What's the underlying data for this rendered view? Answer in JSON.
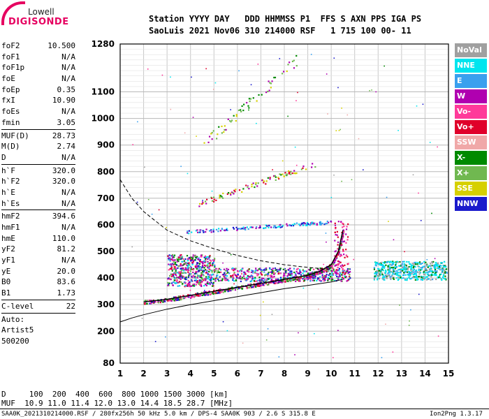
{
  "logo": {
    "line1": "Lowell",
    "line2": "DIGISONDE"
  },
  "header": {
    "row1": "Station YYYY DAY   DDD HHMMSS P1  FFS S AXN PPS IGA PS",
    "row2": "SaoLuis 2021 Nov06 310 214000 RSF   1 715 100 00- 11"
  },
  "params": {
    "group1": [
      {
        "k": "foF2",
        "v": "10.500"
      },
      {
        "k": "foF1",
        "v": "N/A"
      },
      {
        "k": "foF1p",
        "v": "N/A"
      },
      {
        "k": "foE",
        "v": "N/A"
      },
      {
        "k": "foEp",
        "v": "0.35"
      },
      {
        "k": "fxI",
        "v": "10.90"
      },
      {
        "k": "foEs",
        "v": "N/A"
      },
      {
        "k": "fmin",
        "v": "3.05"
      }
    ],
    "group2": [
      {
        "k": "MUF(D)",
        "v": "28.73"
      },
      {
        "k": "M(D)",
        "v": "2.74"
      },
      {
        "k": "D",
        "v": "N/A"
      }
    ],
    "group3": [
      {
        "k": "h`F",
        "v": "320.0"
      },
      {
        "k": "h`F2",
        "v": "320.0"
      },
      {
        "k": "h`E",
        "v": "N/A"
      },
      {
        "k": "h`Es",
        "v": "N/A"
      }
    ],
    "group4": [
      {
        "k": "hmF2",
        "v": "394.6"
      },
      {
        "k": "hmF1",
        "v": "N/A"
      },
      {
        "k": "hmE",
        "v": "110.0"
      },
      {
        "k": "yF2",
        "v": "81.2"
      },
      {
        "k": "yF1",
        "v": "N/A"
      },
      {
        "k": "yE",
        "v": "20.0"
      },
      {
        "k": "B0",
        "v": "83.6"
      },
      {
        "k": "B1",
        "v": "1.73"
      }
    ],
    "group5": [
      {
        "k": "C-level",
        "v": "22"
      }
    ],
    "auto": [
      "Auto:",
      "Artist5",
      "500200"
    ]
  },
  "legend": [
    {
      "label": "NoVal",
      "color": "#a0a0a0"
    },
    {
      "label": "NNE",
      "color": "#00e5ee"
    },
    {
      "label": "E",
      "color": "#3aa0ee"
    },
    {
      "label": "W",
      "color": "#b000b0"
    },
    {
      "label": "Vo-",
      "color": "#ff3a9a"
    },
    {
      "label": "Vo+",
      "color": "#e0002a"
    },
    {
      "label": "SSW",
      "color": "#f0a8a8"
    },
    {
      "label": "X-",
      "color": "#008a00"
    },
    {
      "label": "X+",
      "color": "#70b850"
    },
    {
      "label": "SSE",
      "color": "#d6d000"
    },
    {
      "label": "NNW",
      "color": "#1a1acc"
    }
  ],
  "chart_data": {
    "type": "scatter",
    "xlim": [
      1,
      15
    ],
    "ylim": [
      80,
      1280
    ],
    "x_ticks": [
      "1",
      "2",
      "3",
      "4",
      "5",
      "6",
      "7",
      "8",
      "9",
      "10",
      "11",
      "12",
      "13",
      "14",
      "15"
    ],
    "y_ticks": [
      "80",
      "200",
      "300",
      "400",
      "500",
      "600",
      "700",
      "800",
      "900",
      "1000",
      "1100",
      "1280"
    ],
    "grid": true,
    "profile_curve": [
      [
        1.0,
        235
      ],
      [
        1.5,
        250
      ],
      [
        2,
        262
      ],
      [
        3,
        283
      ],
      [
        4,
        300
      ],
      [
        5,
        315
      ],
      [
        6,
        330
      ],
      [
        7,
        345
      ],
      [
        8,
        360
      ],
      [
        9,
        372
      ],
      [
        10,
        385
      ],
      [
        10.5,
        395
      ]
    ],
    "muf_dashed_curve": [
      [
        1.0,
        770
      ],
      [
        1.5,
        700
      ],
      [
        2,
        650
      ],
      [
        3,
        580
      ],
      [
        4,
        540
      ],
      [
        5,
        510
      ],
      [
        6,
        485
      ],
      [
        7,
        465
      ],
      [
        8,
        450
      ],
      [
        9,
        440
      ],
      [
        10,
        432
      ]
    ],
    "trace_curve": [
      [
        2.0,
        310
      ],
      [
        3,
        320
      ],
      [
        4,
        335
      ],
      [
        5,
        350
      ],
      [
        6,
        365
      ],
      [
        7,
        380
      ],
      [
        8,
        395
      ],
      [
        9,
        410
      ],
      [
        9.5,
        425
      ],
      [
        10,
        450
      ],
      [
        10.3,
        500
      ],
      [
        10.5,
        580
      ]
    ]
  },
  "footer": {
    "d_row": "D     100  200  400  600  800 1000 1500 3000 [km]",
    "muf_row": "MUF  10.9 11.0 11.4 12.0 13.0 14.4 18.5 28.7 [MHz]",
    "file_info": "SAA0K_2021310214000.RSF / 280fx256h 50 kHz 5.0 km / DPS-4 SAA0K 903 / 2.6 S 315.8 E",
    "version": "Ion2Png 1.3.17"
  }
}
